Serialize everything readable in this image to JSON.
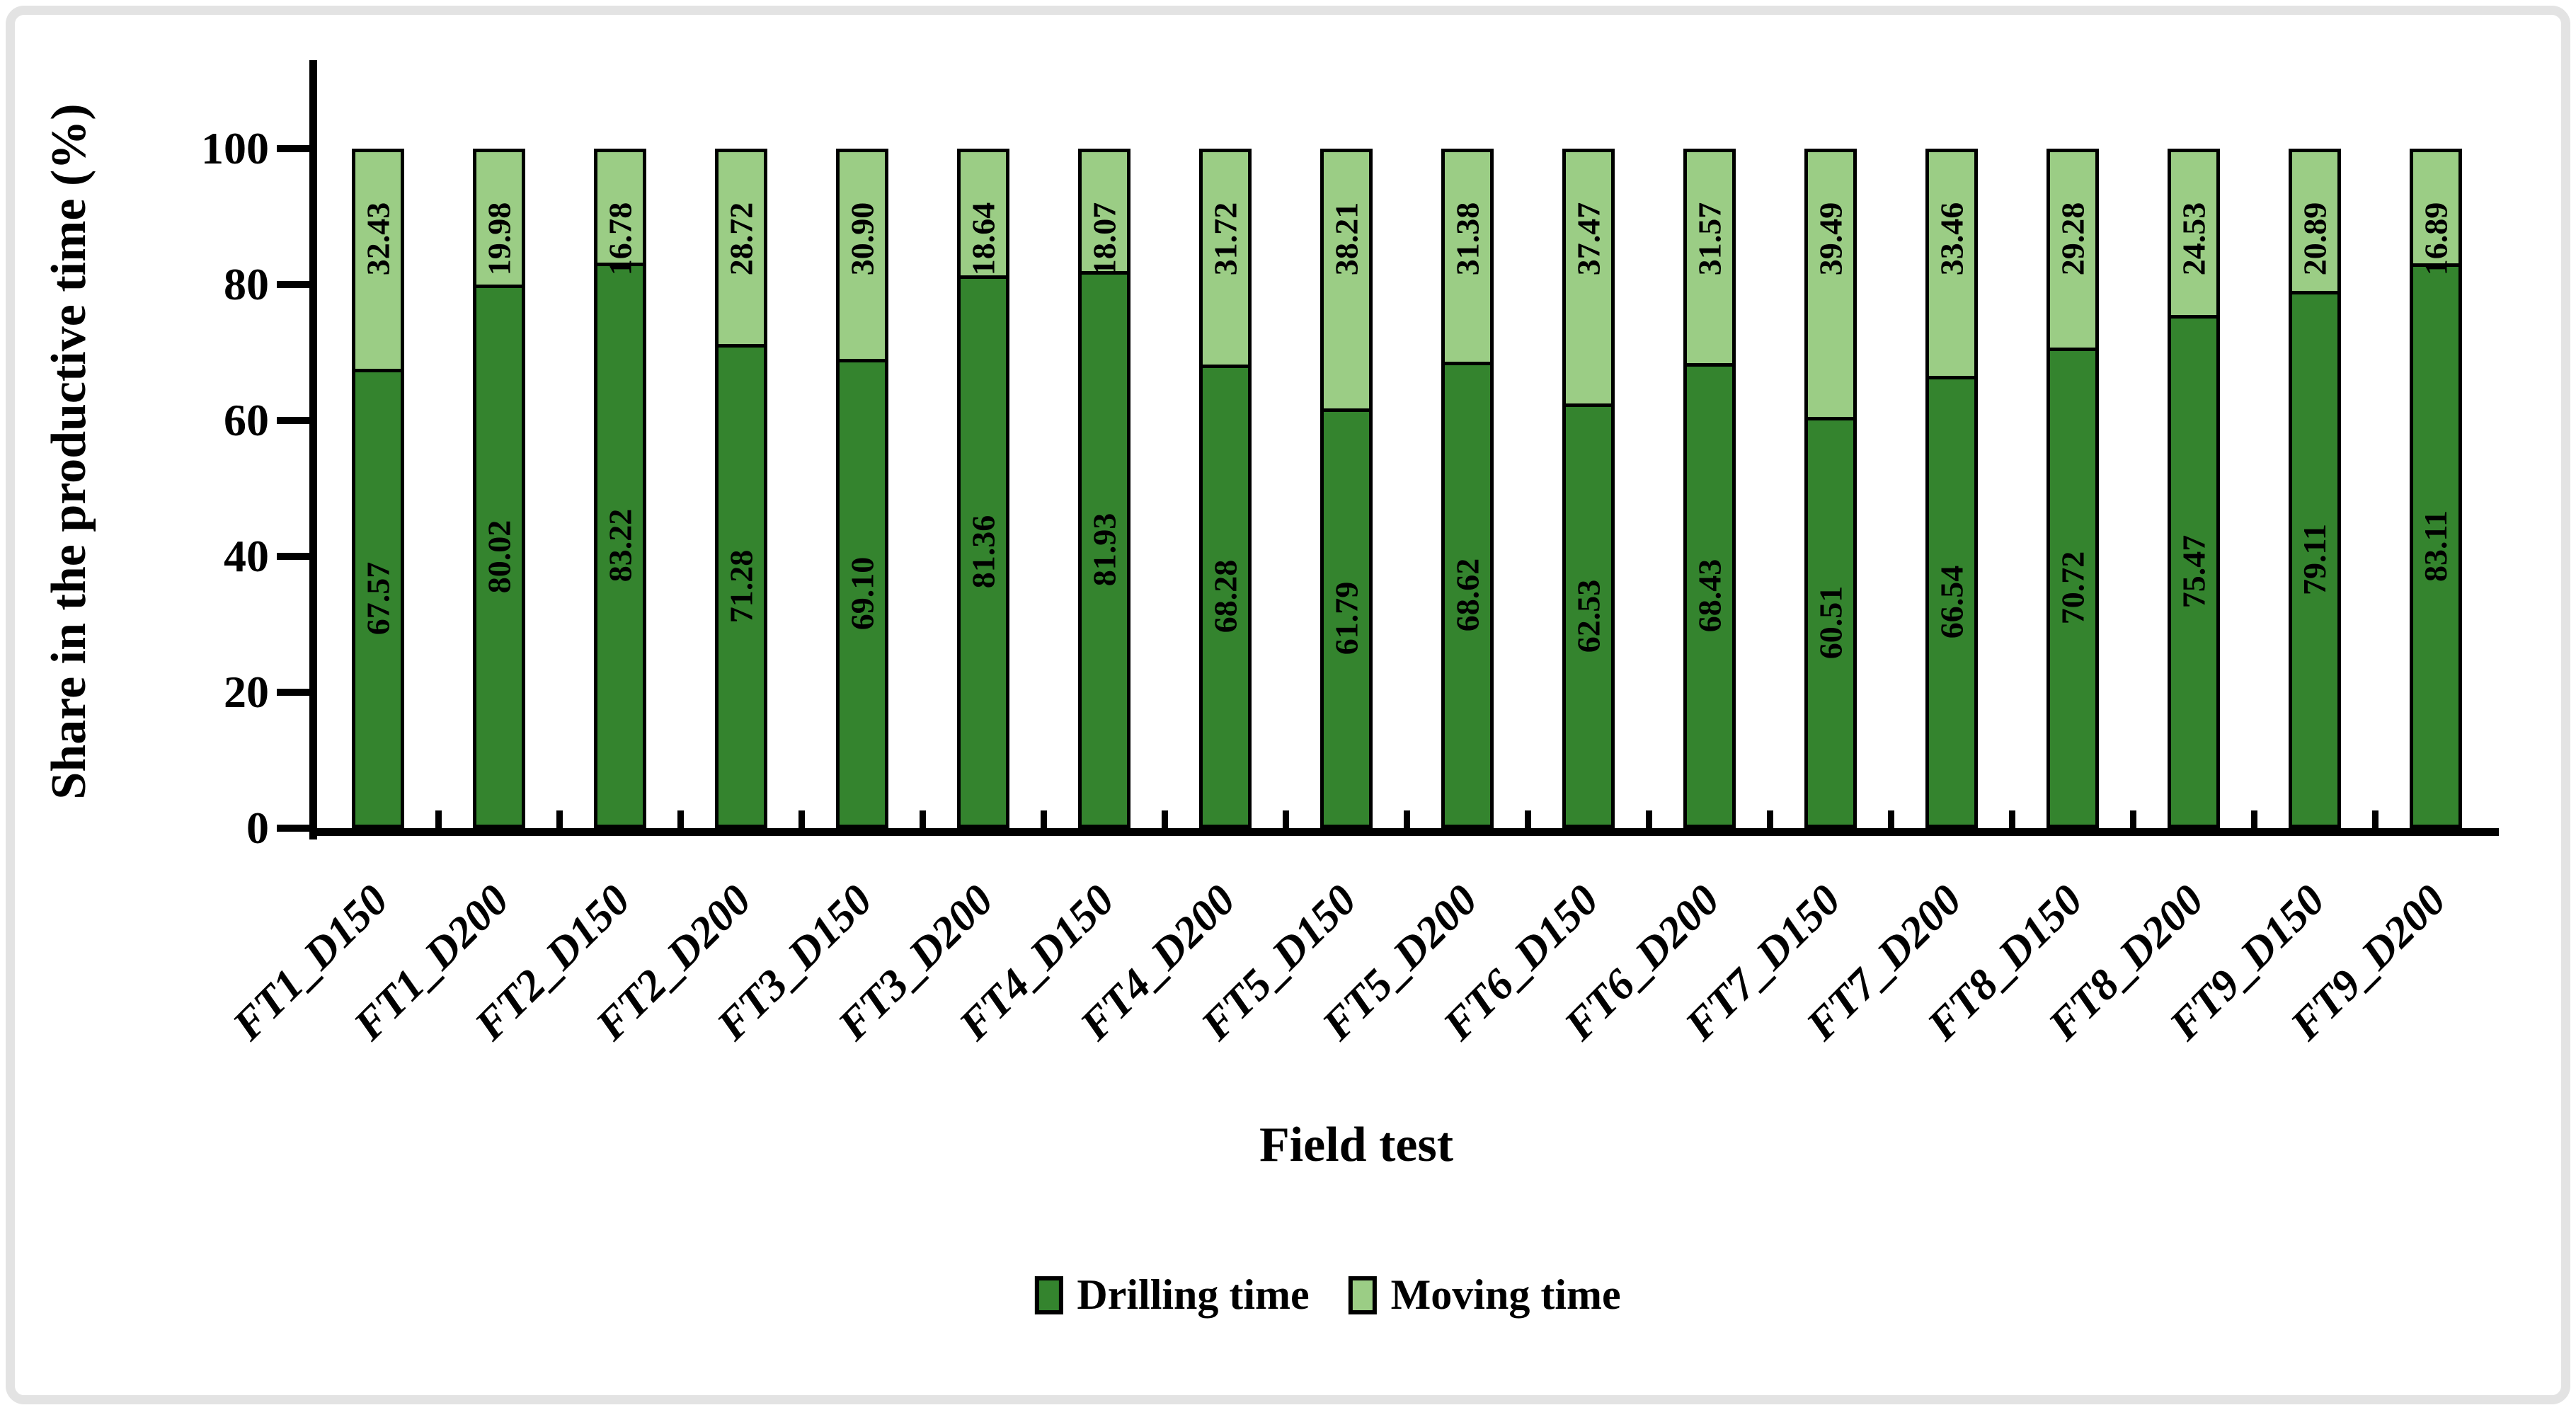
{
  "figure": {
    "background": "#ffffff",
    "border_color": "#e3e3e3"
  },
  "chart_data": {
    "type": "bar",
    "stacked": true,
    "units": "percent",
    "title": "",
    "xlabel": "Field test",
    "ylabel": "Share in the productive time (%)",
    "ylim": [
      0,
      100
    ],
    "yticks": [
      "0",
      "20",
      "40",
      "60",
      "80",
      "100"
    ],
    "grid": false,
    "legend_position": "bottom",
    "bar_outline_color": "#000000",
    "categories": [
      "FT1_D150",
      "FT1_D200",
      "FT2_D150",
      "FT2_D200",
      "FT3_D150",
      "FT3_D200",
      "FT4_D150",
      "FT4_D200",
      "FT5_D150",
      "FT5_D200",
      "FT6_D150",
      "FT6_D200",
      "FT7_D150",
      "FT7_D200",
      "FT8_D150",
      "FT8_D200",
      "FT9_D150",
      "FT9_D200"
    ],
    "series": [
      {
        "name": "Drilling time",
        "color": "#34842e",
        "values": [
          67.57,
          80.02,
          83.22,
          71.28,
          69.1,
          81.36,
          81.93,
          68.28,
          61.79,
          68.62,
          62.53,
          68.43,
          60.51,
          66.54,
          70.72,
          75.47,
          79.11,
          83.11
        ],
        "labels": [
          "67.57",
          "80.02",
          "83.22",
          "71.28",
          "69.10",
          "81.36",
          "81.93",
          "68.28",
          "61.79",
          "68.62",
          "62.53",
          "68.43",
          "60.51",
          "66.54",
          "70.72",
          "75.47",
          "79.11",
          "83.11"
        ]
      },
      {
        "name": "Moving time",
        "color": "#9bcd85",
        "values": [
          32.43,
          19.98,
          16.78,
          28.72,
          30.9,
          18.64,
          18.07,
          31.72,
          38.21,
          31.38,
          37.47,
          31.57,
          39.49,
          33.46,
          29.28,
          24.53,
          20.89,
          16.89
        ],
        "labels": [
          "32.43",
          "19.98",
          "16.78",
          "28.72",
          "30.90",
          "18.64",
          "18.07",
          "31.72",
          "38.21",
          "31.38",
          "37.47",
          "31.57",
          "39.49",
          "33.46",
          "29.28",
          "24.53",
          "20.89",
          "16.89"
        ]
      }
    ]
  }
}
